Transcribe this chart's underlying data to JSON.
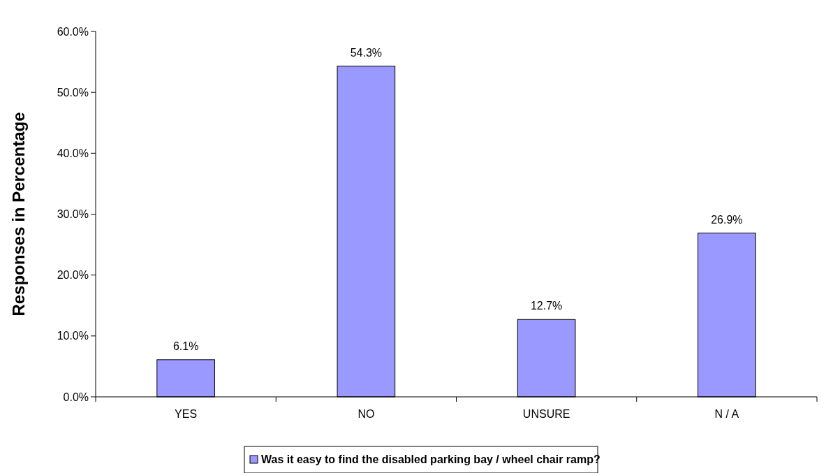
{
  "chart_data": {
    "type": "bar",
    "ylabel": "Responses in Percentage",
    "categories": [
      "YES",
      "NO",
      "UNSURE",
      "N / A"
    ],
    "series": [
      {
        "name": "Was it easy to find the disabled parking bay / wheel chair ramp?",
        "color": "#9999ff",
        "values": [
          6.1,
          54.3,
          12.7,
          26.9
        ],
        "value_labels": [
          "6.1%",
          "54.3%",
          "12.7%",
          "26.9%"
        ]
      }
    ],
    "ylim": [
      0,
      60
    ],
    "yticks": [
      {
        "value": 0,
        "label": "0.0%"
      },
      {
        "value": 10,
        "label": "10.0%"
      },
      {
        "value": 20,
        "label": "20.0%"
      },
      {
        "value": 30,
        "label": "30.0%"
      },
      {
        "value": 40,
        "label": "40.0%"
      },
      {
        "value": 50,
        "label": "50.0%"
      },
      {
        "value": 60,
        "label": "60.0%"
      }
    ],
    "grid": false,
    "legend": "bottom"
  }
}
